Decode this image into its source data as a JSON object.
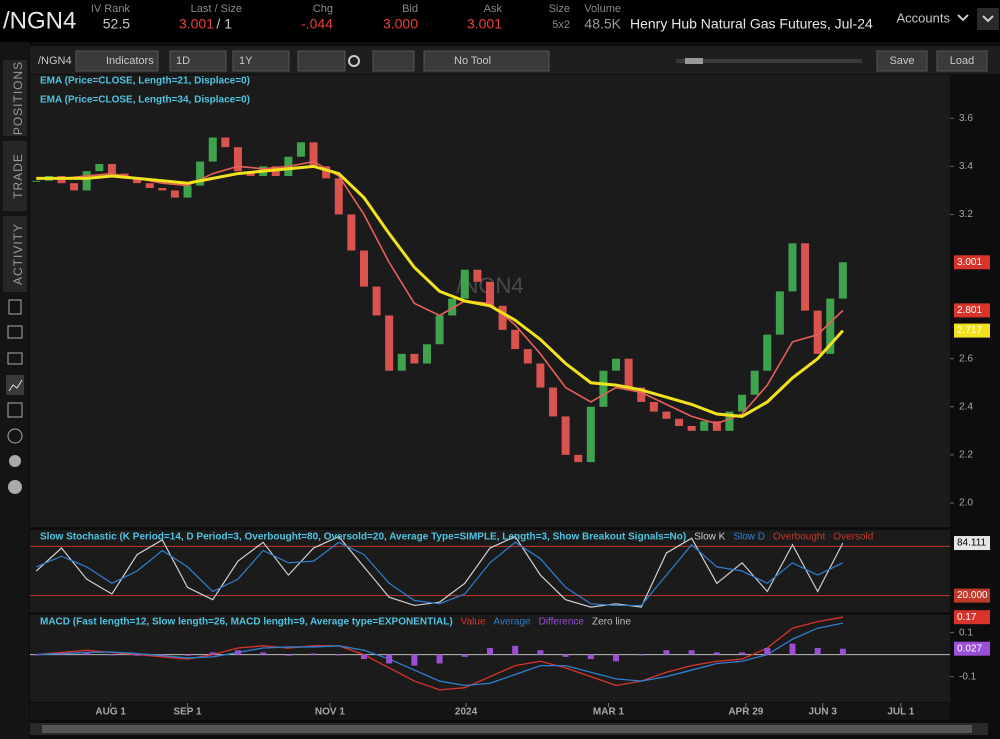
{
  "header": {
    "symbol": "/NGN4",
    "iv_rank_label": "IV Rank",
    "iv_rank": "52.5",
    "last_size_label": "Last / Size",
    "last": "3.001",
    "size_sep": "/ 1",
    "chg_label": "Chg",
    "chg": "-.044",
    "bid_label": "Bid",
    "bid": "3.000",
    "ask_label": "Ask",
    "ask": "3.001",
    "size_label": "Size",
    "size": "5x2",
    "volume_label": "Volume",
    "volume": "48.5K",
    "description": "Henry Hub Natural Gas Futures, Jul-24",
    "accounts": "Accounts"
  },
  "toolbar": {
    "symbol": "/NGN4",
    "indicators": "Indicators",
    "interval": "1D",
    "range": "1Y",
    "tool": "No Tool",
    "save": "Save",
    "load": "Load"
  },
  "sidebar": {
    "tabs": [
      "POSITIONS",
      "TRADE",
      "ACTIVITY"
    ]
  },
  "chart_data": [
    {
      "type": "candlestick",
      "watermark": "/NGN4",
      "xlim": [
        -0.5,
        72.5
      ],
      "ylim": [
        1.9,
        3.78
      ],
      "yticks": [
        3.6,
        3.4,
        3.2,
        2.6,
        2.4,
        2.2,
        {
          "value": 2,
          "label": "2.0"
        }
      ],
      "up_color": "#3fa34d",
      "down_color": "#d9534f",
      "close": [
        3.34,
        3.36,
        3.33,
        3.3,
        3.38,
        3.41,
        3.37,
        3.35,
        3.33,
        3.31,
        3.3,
        3.27,
        3.32,
        3.42,
        3.52,
        3.48,
        3.38,
        3.36,
        3.4,
        3.36,
        3.44,
        3.5,
        3.4,
        3.35,
        3.2,
        3.05,
        2.9,
        2.78,
        2.55,
        2.62,
        2.58,
        2.66,
        2.78,
        2.85,
        2.97,
        2.92,
        2.82,
        2.72,
        2.64,
        2.58,
        2.48,
        2.36,
        2.2,
        2.17,
        2.4,
        2.55,
        2.6,
        2.48,
        2.42,
        2.38,
        2.35,
        2.32,
        2.3,
        2.34,
        2.3,
        2.38,
        2.45,
        2.55,
        2.7,
        2.88,
        3.08,
        2.8,
        2.62,
        2.85,
        3.001
      ],
      "series": [
        {
          "name": "EMA (Price=CLOSE, Length=21, Displace=0)",
          "color": "#e8605a",
          "x": [
            0,
            2,
            4,
            6,
            8,
            10,
            12,
            14,
            16,
            18,
            20,
            22,
            24,
            26,
            28,
            30,
            32,
            34,
            36,
            38,
            40,
            42,
            44,
            46,
            48,
            50,
            52,
            54,
            56,
            58,
            60,
            62,
            64
          ],
          "values": [
            3.35,
            3.35,
            3.36,
            3.37,
            3.35,
            3.33,
            3.32,
            3.37,
            3.4,
            3.39,
            3.4,
            3.42,
            3.36,
            3.2,
            3.0,
            2.83,
            2.78,
            2.84,
            2.83,
            2.74,
            2.62,
            2.48,
            2.42,
            2.48,
            2.46,
            2.41,
            2.36,
            2.33,
            2.37,
            2.49,
            2.67,
            2.7,
            2.801
          ]
        },
        {
          "name": "EMA (Price=CLOSE, Length=34, Displace=0)",
          "color": "#f2e21c",
          "x": [
            0,
            2,
            4,
            6,
            8,
            10,
            12,
            14,
            16,
            18,
            20,
            22,
            24,
            26,
            28,
            30,
            32,
            34,
            36,
            38,
            40,
            42,
            44,
            46,
            48,
            50,
            52,
            54,
            56,
            58,
            60,
            62,
            64
          ],
          "values": [
            3.35,
            3.35,
            3.35,
            3.36,
            3.35,
            3.34,
            3.33,
            3.35,
            3.37,
            3.38,
            3.39,
            3.4,
            3.37,
            3.27,
            3.12,
            2.98,
            2.88,
            2.84,
            2.82,
            2.76,
            2.68,
            2.58,
            2.5,
            2.49,
            2.47,
            2.44,
            2.41,
            2.37,
            2.36,
            2.42,
            2.52,
            2.6,
            2.717
          ]
        }
      ],
      "markers": [
        {
          "value": 3.001,
          "color": "#d9342b"
        },
        {
          "value": 2.801,
          "color": "#d9342b"
        },
        {
          "value": 2.717,
          "color": "#f2e21c"
        }
      ]
    },
    {
      "type": "stochastic",
      "title": "Slow Stochastic (K Period=14, D Period=3, Overbought=80, Oversold=20, Average Type=SIMPLE, Length=3, Show Breakout Signals=No)",
      "xlim": [
        -0.5,
        72.5
      ],
      "ylim": [
        0,
        100
      ],
      "x": [
        0,
        2,
        4,
        6,
        8,
        10,
        12,
        14,
        16,
        18,
        20,
        22,
        24,
        26,
        28,
        30,
        32,
        34,
        36,
        38,
        40,
        42,
        44,
        46,
        48,
        50,
        52,
        54,
        56,
        58,
        60,
        62,
        64
      ],
      "series": [
        {
          "name": "Slow K",
          "color": "#cfcfcf",
          "values": [
            50,
            78,
            40,
            22,
            70,
            88,
            30,
            15,
            62,
            85,
            45,
            78,
            92,
            55,
            18,
            8,
            12,
            35,
            78,
            92,
            45,
            15,
            6,
            10,
            6,
            72,
            90,
            35,
            60,
            25,
            82,
            25,
            84.111
          ]
        },
        {
          "name": "Slow D",
          "color": "#2f7fd0",
          "values": [
            55,
            68,
            55,
            35,
            50,
            75,
            55,
            25,
            40,
            75,
            60,
            62,
            85,
            70,
            35,
            14,
            10,
            22,
            60,
            85,
            65,
            30,
            10,
            8,
            8,
            45,
            82,
            55,
            50,
            35,
            60,
            45,
            60
          ]
        }
      ],
      "levels": [
        {
          "name": "Overbought",
          "value": 80,
          "color": "#c0392b"
        },
        {
          "name": "Oversold",
          "value": 20,
          "color": "#c0392b"
        }
      ],
      "markers": [
        {
          "value": 84.111,
          "color": "#e6e6e6"
        },
        {
          "value": 20,
          "label": "20.000",
          "color": "#c0392b"
        }
      ]
    },
    {
      "type": "macd",
      "title": "MACD (Fast length=12, Slow length=26, MACD length=9, Average type=EXPONENTIAL)",
      "xlim": [
        -0.5,
        72.5
      ],
      "ylim": [
        -0.215,
        0.18
      ],
      "yticks": [
        0.1,
        -0.1
      ],
      "x": [
        0,
        2,
        4,
        6,
        8,
        10,
        12,
        14,
        16,
        18,
        20,
        22,
        24,
        26,
        28,
        30,
        32,
        34,
        36,
        38,
        40,
        42,
        44,
        46,
        48,
        50,
        52,
        54,
        56,
        58,
        60,
        62,
        64
      ],
      "series": [
        {
          "name": "Value",
          "color": "#d9342b",
          "values": [
            0.0,
            0.01,
            0.02,
            0.01,
            0.0,
            -0.01,
            -0.02,
            0.0,
            0.03,
            0.04,
            0.03,
            0.04,
            0.04,
            0.0,
            -0.06,
            -0.12,
            -0.16,
            -0.15,
            -0.1,
            -0.05,
            -0.03,
            -0.06,
            -0.1,
            -0.14,
            -0.12,
            -0.08,
            -0.05,
            -0.03,
            -0.02,
            0.03,
            0.12,
            0.15,
            0.17
          ]
        },
        {
          "name": "Average",
          "color": "#2f7fd0",
          "values": [
            0.0,
            0.005,
            0.01,
            0.012,
            0.005,
            -0.005,
            -0.015,
            -0.01,
            0.01,
            0.03,
            0.035,
            0.035,
            0.04,
            0.02,
            -0.02,
            -0.07,
            -0.12,
            -0.14,
            -0.13,
            -0.09,
            -0.05,
            -0.05,
            -0.08,
            -0.11,
            -0.12,
            -0.1,
            -0.07,
            -0.04,
            -0.03,
            0.0,
            0.07,
            0.12,
            0.143
          ]
        },
        {
          "name": "Difference",
          "color": "#9b4fd6",
          "values": [
            0,
            0.005,
            0.01,
            -0.002,
            -0.005,
            -0.005,
            -0.005,
            0.01,
            0.02,
            0.01,
            -0.005,
            0.005,
            0,
            -0.02,
            -0.04,
            -0.05,
            -0.04,
            -0.01,
            0.03,
            0.04,
            0.02,
            -0.01,
            -0.02,
            -0.03,
            0,
            0.02,
            0.02,
            0.01,
            0.01,
            0.03,
            0.05,
            0.03,
            0.027
          ]
        }
      ],
      "zero_line": {
        "name": "Zero line",
        "value": 0,
        "color": "#bdbdbd"
      },
      "markers": [
        {
          "value": 0.17,
          "color": "#d9342b"
        },
        {
          "value": 0.027,
          "color": "#9b4fd6"
        }
      ],
      "xticks": [
        {
          "value": 5.9,
          "label": "AUG 1"
        },
        {
          "value": 12,
          "label": "SEP 1"
        },
        {
          "value": 23.3,
          "label": "NOV 1"
        },
        {
          "value": 34.1,
          "label": "2024"
        },
        {
          "value": 45.4,
          "label": "MAR 1"
        },
        {
          "value": 56.3,
          "label": "APR 29"
        },
        {
          "value": 62.4,
          "label": "JUN 3"
        },
        {
          "value": 68.6,
          "label": "JUL 1"
        }
      ]
    }
  ]
}
